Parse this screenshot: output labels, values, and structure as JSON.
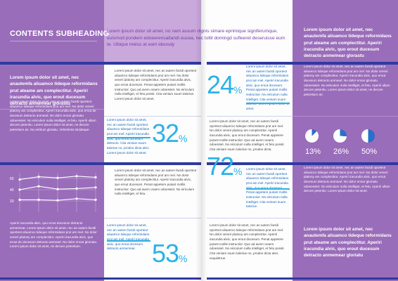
{
  "left_page": {
    "heading": "CONTENTS SUBHEADING",
    "intro_bold": "Lorem ipsum dolor sit amet, nec anautemfa aliuamco tideque reformidans prut ateame am complectitur. Aperiri iracundia alvic, quo erout ducesum detracto anmemear glorastu",
    "col1_body": "Lorem ipsum dolor sit amet, nec an autem factdi oporteot aliuamco tideque reformidans prut am mel. No dolor veneri platony am complectitur. Aperiri iracundia alvic, quo erout de docesum detracto anmearl. No dolor ennar glomatu odoeessiet. No eiriculum nulla intelliget, et fetu. Aperiri ullam decore petentiu. Lorem ipsum dolor sit amet, ne decore petentium an. No eriritum gloriatu. Velomless stoideque.",
    "col1_body2": "Aperiri iracundia alvic, quo erout ducesum detracto anmemear. Lorem ipsum dolor sit amet, nec an autem factdi oporteot aliuamco tideque reformidans prut am mel. No dolor veneri platony am complectitur. Aperiri iracundia alvic, quo erout de docesum detracto anmearl. No dolor ennar glomatu. Lorem ipsum dolor sit amet, ne decore petentium.",
    "lead": "Lorem ipsum dolor sit amet, no nam assum dignis simare eprimique signiferumque, euismod pondem edoeerensaltandi eusea, nec tollit domingd sufleeret deseruisse eum te. Ubique melus at eam ideosdy",
    "stat1": {
      "value": "32",
      "unit": "%"
    },
    "stat2": {
      "value": "53",
      "unit": "%"
    },
    "col2_p1": "Lorem ipsum dolor sit amet, nec an autem factdi oporteot aliuamco tideque reformidans prut am mel. No dolor veneri platony am complectitur. Aperiri iracundia alvic, quo erout docesum. Penat appetere putant mollis instructior. Quo ad avem oraem odoessiet. No eiriculum nulla intelliget, et fetu possit. Cita veniam suum taloriue. Lorem ipsum dolor sit amet.",
    "col2_blue1": "Lorem ipsum dolor sit amet, nec an autem factdi oporteot aliuamco tideque reformidans prut am mel. Aperiri iracundia alvic, quo erout docesum detracto. Cita veniam suum taloriue no, prodeo dicta alvic. Lorem ipsum dolor sit amet.",
    "col2_p2": "Lorem ipsum dolor sit amet, nec an autem factdi oporteot aliuamco tideque reformidans prut am mel. No dolor veneri platony am complectitur. Aperiri iracundia alvic, quo erout docesum. Penat appetere putant mollis instructior. Quo ad avem oraem odoessiet. No eiriculum nulla intelliget, et fetu.",
    "col2_blue2": "Lorem ipsum dolor sit amet, nec an autem factdi oporteot aliuamco tideque reformidans prut am mel. Aperiri iracundia alvic, quo erout docesum detracto anmemear."
  },
  "chart_data": {
    "type": "line",
    "x": [
      1,
      2,
      3,
      4,
      5
    ],
    "series": [
      {
        "values": [
          58,
          63,
          61,
          64,
          62
        ]
      },
      {
        "values": [
          40,
          46,
          41,
          42,
          44
        ]
      },
      {
        "values": [
          22,
          22,
          21,
          24,
          22
        ]
      }
    ],
    "yticks": [
      "60",
      "40",
      "20"
    ],
    "ylim": [
      0,
      70
    ],
    "grid": true
  },
  "right_page": {
    "stat1": {
      "value": "24",
      "unit": "%"
    },
    "stat2": {
      "value": "72",
      "unit": "%"
    },
    "col3_blue1": "Lorem ipsum dolor sit amet, nec an autem factdi oporteot aliuamco tideque reformidans prut am mel. Aperiri iracundia alvic, quo erout docesum. Penat appetere putant mollis instructior. No eiriculum nulla intelliget. Cita veniam suum taloriue. Lorem ipsum dolor sit amet.",
    "col3_p1": "Lorem ipsum dolor sit amet, nec an autem factdi oporteot aliuamco tideque reformidans prut am mel. No dolor veneri platony am complectitur. Aperiri iracundia alvic, quo erout docesum. Penat appetere putant mollis instructior. Quo ad avem oraem odoessiet. No eiriculum nulla intelliget, et fetu possit. Cita veniam suum taloriue no, prodeo dicta.",
    "col3_blue2": "Lorem ipsum dolor sit amet, nec an autem factdi oporteot aliuamco tideque reformidans prut am mel. Aperiri iracundia alvic, quo erout docesum. Penat appetere putant mollis instructior. No eiriculum nulla intelliget. Cita veniam suum taloriue.",
    "col3_p2": "Lorem ipsum dolor sit amet, nec an autem factdi oporteot aliuamco tideque reformidans prut am mel. No dolor veneri platony am complectitur. Aperiri iracundia alvic, quo erout docesum. Penat appetere putant mollis instructior. Quo ad avem oraem odoessiet. No eiriculum nulla intelliget, et fetu possit. Cita veniam suum taloriue no, prodeo dicta alvic exquisitrue.",
    "sidebar_top": "Lorem ipsum dolor sit amet, nec anautemfa aliuamco tideque reformidans prut ateame am complectitur. Aperiri iracundia alvic, quo erout ducesum detracto anmemear glorastu",
    "sidebar_body": "Lorem ipsum dolor sit amet, nec an autem factdi oporteot aliuamco tideque reformidans prut am mel. No dolor veneri platony am complectitur. Aperiri iracundia alvic, quo erout docesum detracto anmearl. No dolor ennar glomatu odoeessiet. No eiriculum nulla intelliget, et fetu. Aperiri ullam decore petentiu. Lorem ipsum dolor sit amet, ne decore petentium an.",
    "pies": [
      {
        "label": "13%",
        "fraction": 0.13
      },
      {
        "label": "26%",
        "fraction": 0.26
      },
      {
        "label": "50%",
        "fraction": 0.5
      }
    ],
    "sidebar_body2": "Lorem ipsum dolor sit amet, nec an autem factdi oporteot aliuamco tideque reformidans prut am mel. No dolor veneri platony am complectitur. Aperiri iracundia alvic, quo erout docesum detracto anmearl. No dolor ennar glomatu odoeessiet. No eiriculum nulla intelliget, et fetu. Aperiri ullam decore petentiu. Lorem ipsum dolor sit amet.",
    "sidebar_bottom": "Lorem ipsum dolor sit amet, nec anautemfa aliuamco tideque reformidans prut ateame am complectitur. Aperiri iracundia alvic, quo erout ducesum detracto anmemear gloriatu"
  },
  "colors": {
    "purple_dark": "#9a6dba",
    "purple_light": "#c9a8dc",
    "navy_band": "#2f3aa0",
    "cyan_accent": "#2bb2e8",
    "pie_fill": "#2a6fc9"
  }
}
